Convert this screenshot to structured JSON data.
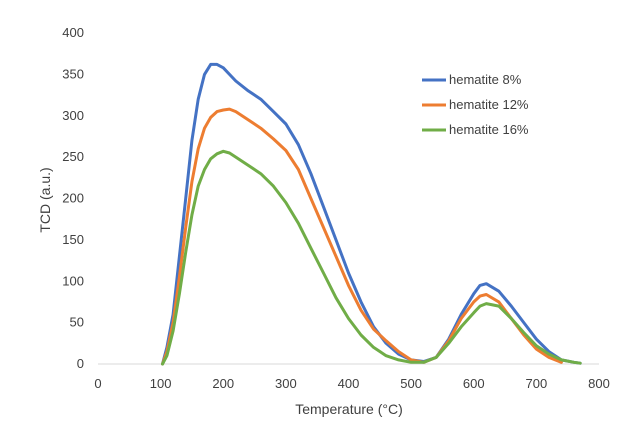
{
  "chart_data": {
    "type": "line",
    "xlabel": "Temperature (°C)",
    "ylabel": "TCD (a.u.)",
    "xlim": [
      0,
      800
    ],
    "ylim": [
      0,
      400
    ],
    "xticks": [
      0,
      100,
      200,
      300,
      400,
      500,
      600,
      700,
      800
    ],
    "yticks": [
      0,
      50,
      100,
      150,
      200,
      250,
      300,
      350,
      400
    ],
    "grid": false,
    "legend_position": "top-right",
    "colors": {
      "hematite 8%": "#4472C4",
      "hematite 12%": "#ED7D31",
      "hematite 16%": "#70AD47"
    },
    "series": [
      {
        "name": "hematite 8%",
        "color": "#4472C4",
        "points": [
          [
            103,
            0
          ],
          [
            110,
            20
          ],
          [
            120,
            60
          ],
          [
            130,
            130
          ],
          [
            140,
            200
          ],
          [
            150,
            270
          ],
          [
            160,
            320
          ],
          [
            170,
            350
          ],
          [
            180,
            362
          ],
          [
            190,
            362
          ],
          [
            200,
            358
          ],
          [
            210,
            350
          ],
          [
            220,
            342
          ],
          [
            240,
            330
          ],
          [
            260,
            320
          ],
          [
            280,
            305
          ],
          [
            300,
            290
          ],
          [
            320,
            265
          ],
          [
            340,
            230
          ],
          [
            360,
            190
          ],
          [
            380,
            150
          ],
          [
            400,
            110
          ],
          [
            420,
            75
          ],
          [
            440,
            45
          ],
          [
            460,
            25
          ],
          [
            480,
            12
          ],
          [
            500,
            5
          ],
          [
            520,
            3
          ],
          [
            540,
            8
          ],
          [
            560,
            30
          ],
          [
            580,
            60
          ],
          [
            600,
            85
          ],
          [
            610,
            95
          ],
          [
            620,
            97
          ],
          [
            640,
            88
          ],
          [
            660,
            70
          ],
          [
            680,
            50
          ],
          [
            700,
            30
          ],
          [
            720,
            15
          ],
          [
            740,
            5
          ],
          [
            760,
            2
          ],
          [
            770,
            1
          ]
        ]
      },
      {
        "name": "hematite 12%",
        "color": "#ED7D31",
        "points": [
          [
            103,
            0
          ],
          [
            110,
            15
          ],
          [
            120,
            50
          ],
          [
            130,
            105
          ],
          [
            140,
            165
          ],
          [
            150,
            220
          ],
          [
            160,
            260
          ],
          [
            170,
            285
          ],
          [
            180,
            298
          ],
          [
            190,
            305
          ],
          [
            200,
            307
          ],
          [
            210,
            308
          ],
          [
            220,
            305
          ],
          [
            240,
            295
          ],
          [
            260,
            285
          ],
          [
            280,
            272
          ],
          [
            300,
            258
          ],
          [
            320,
            235
          ],
          [
            340,
            200
          ],
          [
            360,
            165
          ],
          [
            380,
            130
          ],
          [
            400,
            95
          ],
          [
            420,
            65
          ],
          [
            440,
            42
          ],
          [
            460,
            28
          ],
          [
            480,
            15
          ],
          [
            500,
            5
          ],
          [
            520,
            2
          ],
          [
            540,
            8
          ],
          [
            560,
            28
          ],
          [
            580,
            55
          ],
          [
            600,
            75
          ],
          [
            610,
            82
          ],
          [
            620,
            84
          ],
          [
            640,
            75
          ],
          [
            660,
            55
          ],
          [
            680,
            35
          ],
          [
            700,
            18
          ],
          [
            720,
            8
          ],
          [
            740,
            2
          ]
        ]
      },
      {
        "name": "hematite 16%",
        "color": "#70AD47",
        "points": [
          [
            103,
            0
          ],
          [
            110,
            10
          ],
          [
            120,
            40
          ],
          [
            130,
            85
          ],
          [
            140,
            135
          ],
          [
            150,
            180
          ],
          [
            160,
            215
          ],
          [
            170,
            235
          ],
          [
            180,
            248
          ],
          [
            190,
            254
          ],
          [
            200,
            257
          ],
          [
            210,
            255
          ],
          [
            220,
            250
          ],
          [
            240,
            240
          ],
          [
            260,
            230
          ],
          [
            280,
            215
          ],
          [
            300,
            195
          ],
          [
            320,
            170
          ],
          [
            340,
            140
          ],
          [
            360,
            110
          ],
          [
            380,
            80
          ],
          [
            400,
            55
          ],
          [
            420,
            35
          ],
          [
            440,
            20
          ],
          [
            460,
            10
          ],
          [
            480,
            5
          ],
          [
            500,
            2
          ],
          [
            520,
            2
          ],
          [
            540,
            8
          ],
          [
            560,
            25
          ],
          [
            580,
            45
          ],
          [
            600,
            62
          ],
          [
            610,
            70
          ],
          [
            620,
            73
          ],
          [
            640,
            70
          ],
          [
            660,
            55
          ],
          [
            680,
            38
          ],
          [
            700,
            22
          ],
          [
            720,
            12
          ],
          [
            740,
            5
          ],
          [
            760,
            2
          ],
          [
            770,
            1
          ]
        ]
      }
    ]
  }
}
